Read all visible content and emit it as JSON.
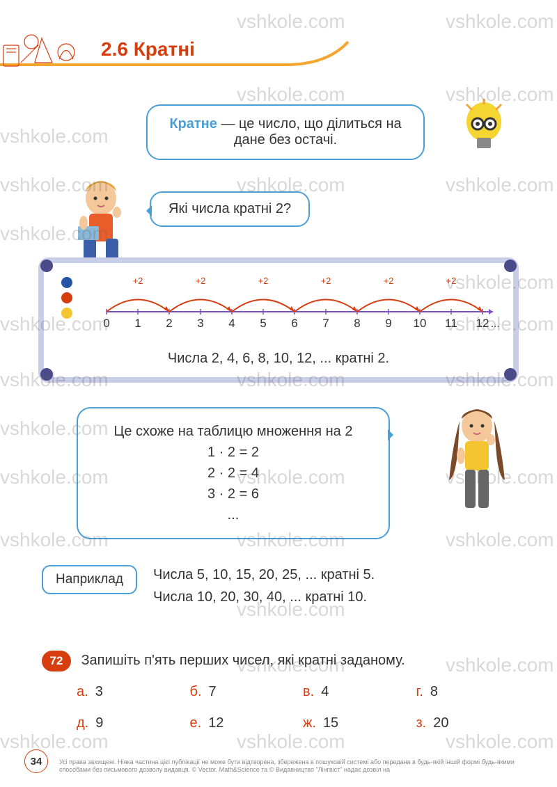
{
  "section": {
    "number": "2.6",
    "title": "Кратні"
  },
  "definition": {
    "term": "Кратне",
    "text": " — це число, що ділиться на дане без остачі."
  },
  "boy_question": "Які числа кратні 2?",
  "numberline": {
    "start": 0,
    "end": 12,
    "ticks": [
      0,
      1,
      2,
      3,
      4,
      5,
      6,
      7,
      8,
      9,
      10,
      11,
      12
    ],
    "arc_step": 2,
    "arc_label": "+2",
    "arc_color": "#d63d0f",
    "line_color": "#7a4fbf"
  },
  "board_caption": "Числа 2, 4, 6, 8, 10, 12, ... кратні 2.",
  "girl_text": {
    "line1": "Це схоже на таблицю множення на 2",
    "eq1": "1 · 2 = 2",
    "eq2": "2 · 2 = 4",
    "eq3": "3 · 2 = 6",
    "dots": "..."
  },
  "example": {
    "label": "Наприклад",
    "line1": "Числа 5, 10, 15, 20, 25, ... кратні 5.",
    "line2": "Числа 10, 20, 30, 40, ... кратні 10."
  },
  "exercise": {
    "number": "72",
    "prompt": "Запишіть п'ять перших чисел, які кратні заданому.",
    "items": [
      {
        "l": "а.",
        "v": "3"
      },
      {
        "l": "б.",
        "v": "7"
      },
      {
        "l": "в.",
        "v": "4"
      },
      {
        "l": "г.",
        "v": "8"
      },
      {
        "l": "д.",
        "v": "9"
      },
      {
        "l": "е.",
        "v": "12"
      },
      {
        "l": "ж.",
        "v": "15"
      },
      {
        "l": "з.",
        "v": "20"
      }
    ]
  },
  "page_number": "34",
  "footer": "Усі права захищені. Ніяка частина цієї публікації не може бути відтворена, збережена в пошуковій системі або передана в будь-якій іншій формі будь-якими способами без письмового дозволу видавця. © Vector. Math&Science та © Видавництво \"Лінгвіст\" надає дозвіл на",
  "colors": {
    "accent": "#d63d0f",
    "bubble_border": "#4a9fd8",
    "dot1": "#2454a3",
    "dot2": "#d63d0f",
    "dot3": "#f5c531"
  },
  "watermarks": {
    "text": "vshkole.com"
  }
}
